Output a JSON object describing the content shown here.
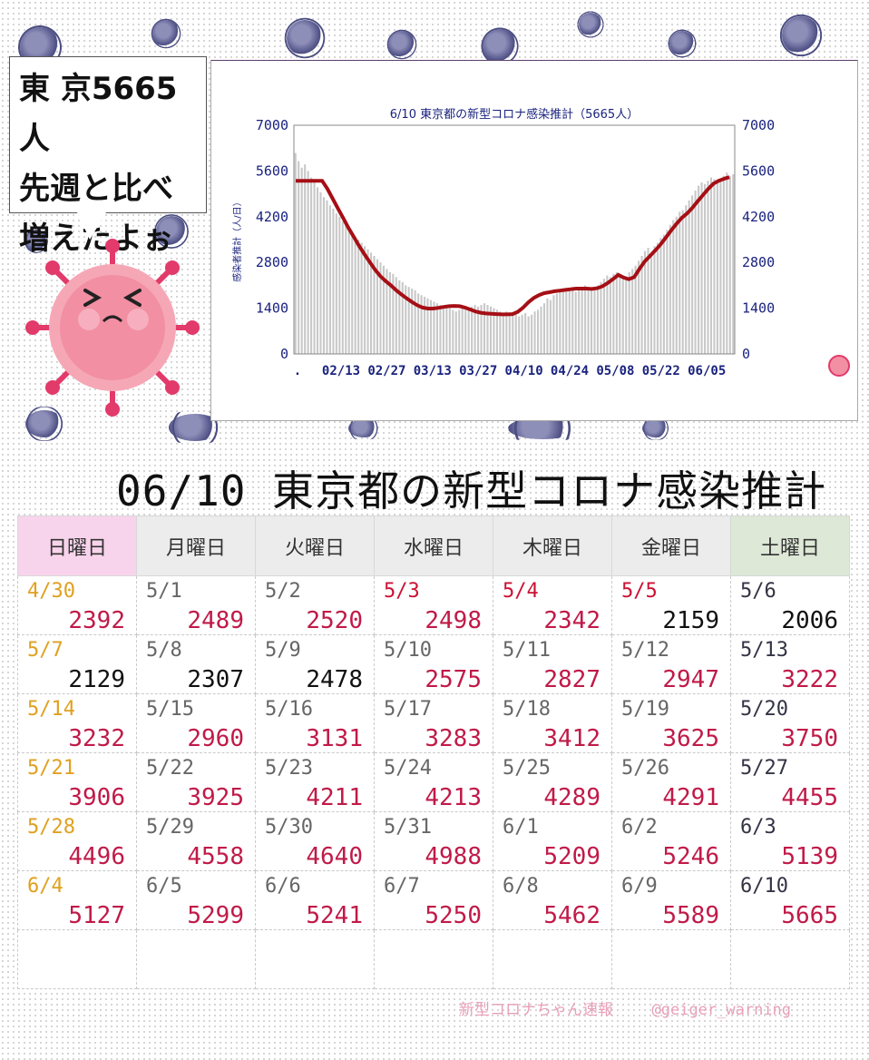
{
  "speech": {
    "line1": "東 京5665 人",
    "line2": "先週と比べ",
    "line3": "増えたよぉ"
  },
  "heading": "06/10 東京都の新型コロナ感染推計",
  "footer": {
    "brand": "新型コロナちゃん速報",
    "handle": "@geiger_warning"
  },
  "chart_data": {
    "type": "bar",
    "title": "6/10 東京都の新型コロナ感染推計（5665人）",
    "ylabel": "感染者推計（人/日）",
    "ylim": [
      0,
      7000
    ],
    "yticks": [
      "0",
      "1400",
      "2800",
      "4200",
      "5600",
      "7000"
    ],
    "x_tick_labels": [
      ".",
      "02/13",
      "02/27",
      "03/13",
      "03/27",
      "04/10",
      "04/24",
      "05/08",
      "05/22",
      "06/05"
    ],
    "series": [
      {
        "values": [
          6150,
          5900,
          5700,
          5800,
          5600,
          5400,
          5250,
          5100,
          4950,
          4800,
          4700,
          4550,
          4450,
          4300,
          4200,
          4050,
          3950,
          3850,
          3700,
          3600,
          3500,
          3400,
          3300,
          3200,
          3100,
          3000,
          2900,
          2800,
          2700,
          2600,
          2500,
          2450,
          2350,
          2250,
          2200,
          2100,
          2050,
          2000,
          1950,
          1850,
          1800,
          1750,
          1700,
          1650,
          1600,
          1550,
          1500,
          1450,
          1400,
          1400,
          1350,
          1300,
          1350,
          1400,
          1350,
          1400,
          1450,
          1500,
          1450,
          1500,
          1550,
          1500,
          1450,
          1400,
          1350,
          1300,
          1250,
          1300,
          1200,
          1250,
          1200,
          1150,
          1200,
          1250,
          1150,
          1200,
          1300,
          1350,
          1450,
          1550,
          1700,
          1650,
          1800,
          1850,
          1900,
          1950,
          2000,
          1950,
          2050,
          1900,
          2000,
          2050,
          2100,
          2050,
          2000,
          1950,
          2100,
          2200,
          2300,
          2400,
          2350,
          2450,
          2500,
          2400,
          2350,
          2300,
          2500,
          2600,
          2700,
          2850,
          3000,
          3150,
          3250,
          3100,
          3300,
          3400,
          3550,
          3650,
          3800,
          3950,
          4100,
          4200,
          4350,
          4400,
          4550,
          4700,
          4850,
          5000,
          5150,
          5250,
          5200,
          5300,
          5400,
          5350,
          5250,
          5300,
          5450,
          5550,
          5450,
          5500
        ]
      },
      {
        "values": [
          5300,
          5300,
          5300,
          5300,
          5300,
          5300,
          5050,
          4750,
          4450,
          4150,
          3850,
          3580,
          3300,
          3050,
          2810,
          2580,
          2380,
          2230,
          2100,
          1950,
          1820,
          1700,
          1590,
          1490,
          1420,
          1390,
          1390,
          1410,
          1440,
          1460,
          1470,
          1460,
          1420,
          1360,
          1300,
          1260,
          1240,
          1230,
          1220,
          1210,
          1210,
          1220,
          1290,
          1420,
          1580,
          1710,
          1800,
          1860,
          1890,
          1920,
          1940,
          1960,
          1980,
          2000,
          2000,
          2000,
          1990,
          2010,
          2070,
          2170,
          2290,
          2420,
          2340,
          2290,
          2350,
          2600,
          2830,
          3000,
          3170,
          3350,
          3560,
          3780,
          3980,
          4160,
          4300,
          4470,
          4670,
          4860,
          5050,
          5210,
          5300,
          5360,
          5410
        ]
      }
    ]
  },
  "calendar": {
    "weekdays": [
      "日曜日",
      "月曜日",
      "火曜日",
      "水曜日",
      "木曜日",
      "金曜日",
      "土曜日"
    ],
    "rows": [
      [
        {
          "d": "4/30",
          "v": "2392",
          "t": "sun"
        },
        {
          "d": "5/1",
          "v": "2489"
        },
        {
          "d": "5/2",
          "v": "2520"
        },
        {
          "d": "5/3",
          "v": "2498",
          "t": "hol"
        },
        {
          "d": "5/4",
          "v": "2342",
          "t": "hol"
        },
        {
          "d": "5/5",
          "v": "2159",
          "t": "hol",
          "k": "black"
        },
        {
          "d": "5/6",
          "v": "2006",
          "t": "sat",
          "k": "black"
        }
      ],
      [
        {
          "d": "5/7",
          "v": "2129",
          "t": "sun",
          "k": "black"
        },
        {
          "d": "5/8",
          "v": "2307",
          "k": "black"
        },
        {
          "d": "5/9",
          "v": "2478",
          "k": "black"
        },
        {
          "d": "5/10",
          "v": "2575"
        },
        {
          "d": "5/11",
          "v": "2827"
        },
        {
          "d": "5/12",
          "v": "2947"
        },
        {
          "d": "5/13",
          "v": "3222",
          "t": "sat"
        }
      ],
      [
        {
          "d": "5/14",
          "v": "3232",
          "t": "sun"
        },
        {
          "d": "5/15",
          "v": "2960"
        },
        {
          "d": "5/16",
          "v": "3131"
        },
        {
          "d": "5/17",
          "v": "3283"
        },
        {
          "d": "5/18",
          "v": "3412"
        },
        {
          "d": "5/19",
          "v": "3625"
        },
        {
          "d": "5/20",
          "v": "3750",
          "t": "sat"
        }
      ],
      [
        {
          "d": "5/21",
          "v": "3906",
          "t": "sun"
        },
        {
          "d": "5/22",
          "v": "3925"
        },
        {
          "d": "5/23",
          "v": "4211"
        },
        {
          "d": "5/24",
          "v": "4213"
        },
        {
          "d": "5/25",
          "v": "4289"
        },
        {
          "d": "5/26",
          "v": "4291"
        },
        {
          "d": "5/27",
          "v": "4455",
          "t": "sat"
        }
      ],
      [
        {
          "d": "5/28",
          "v": "4496",
          "t": "sun"
        },
        {
          "d": "5/29",
          "v": "4558"
        },
        {
          "d": "5/30",
          "v": "4640"
        },
        {
          "d": "5/31",
          "v": "4988"
        },
        {
          "d": "6/1",
          "v": "5209"
        },
        {
          "d": "6/2",
          "v": "5246"
        },
        {
          "d": "6/3",
          "v": "5139",
          "t": "sat"
        }
      ],
      [
        {
          "d": "6/4",
          "v": "5127",
          "t": "sun"
        },
        {
          "d": "6/5",
          "v": "5299"
        },
        {
          "d": "6/6",
          "v": "5241"
        },
        {
          "d": "6/7",
          "v": "5250"
        },
        {
          "d": "6/8",
          "v": "5462"
        },
        {
          "d": "6/9",
          "v": "5589"
        },
        {
          "d": "6/10",
          "v": "5665",
          "t": "sat"
        }
      ],
      [
        {
          "d": "",
          "v": ""
        },
        {
          "d": "",
          "v": ""
        },
        {
          "d": "",
          "v": ""
        },
        {
          "d": "",
          "v": ""
        },
        {
          "d": "",
          "v": ""
        },
        {
          "d": "",
          "v": ""
        },
        {
          "d": "",
          "v": ""
        }
      ]
    ]
  }
}
